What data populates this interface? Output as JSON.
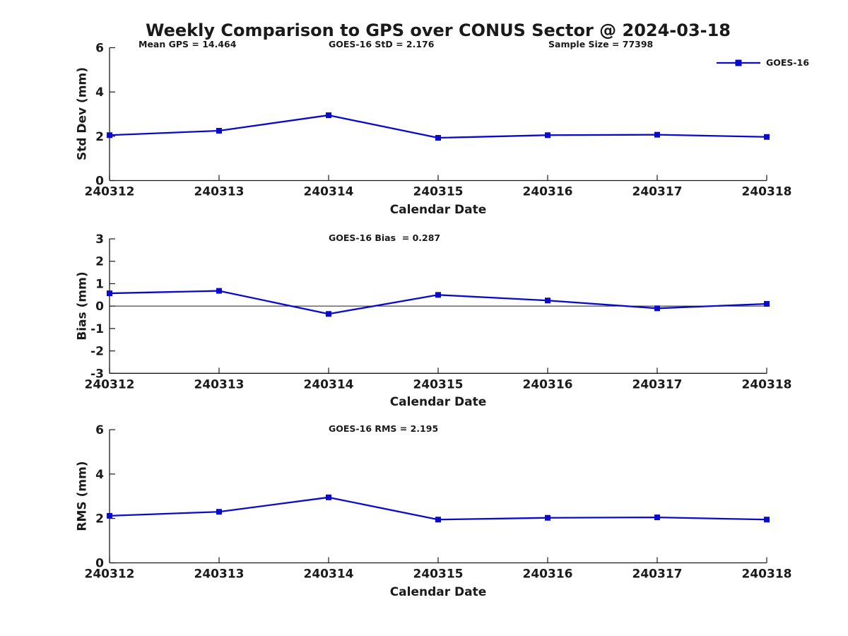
{
  "title": "Weekly Comparison to GPS over CONUS Sector @ 2024-03-18",
  "annotations": {
    "mean_gps": "Mean GPS = 14.464",
    "std": "GOES-16 StD = 2.176",
    "sample_size": "Sample Size = 77398"
  },
  "legend": {
    "label": "GOES-16",
    "color": "#0a0acd",
    "marker": "square",
    "position": "top-right"
  },
  "colors": {
    "line": "#0a0acd",
    "axis": "#1a1a1a",
    "text": "#1a1a1a",
    "background": "#ffffff"
  },
  "chart_data": [
    {
      "type": "line",
      "title": "",
      "xlabel": "Calendar Date",
      "ylabel": "Std Dev (mm)",
      "ylim": [
        0,
        6
      ],
      "yticks": [
        0,
        2,
        4,
        6
      ],
      "zero_line": false,
      "grid": false,
      "categories": [
        "240312",
        "240313",
        "240314",
        "240315",
        "240316",
        "240317",
        "240318"
      ],
      "series": [
        {
          "name": "GOES-16",
          "color": "#0a0acd",
          "marker": "square",
          "values": [
            2.05,
            2.25,
            2.95,
            1.93,
            2.05,
            2.07,
            1.97
          ]
        }
      ]
    },
    {
      "type": "line",
      "title": "GOES-16 Bias  = 0.287",
      "xlabel": "Calendar Date",
      "ylabel": "Bias (mm)",
      "ylim": [
        -3,
        3
      ],
      "yticks": [
        -3,
        -2,
        -1,
        0,
        1,
        2,
        3
      ],
      "zero_line": true,
      "grid": false,
      "categories": [
        "240312",
        "240313",
        "240314",
        "240315",
        "240316",
        "240317",
        "240318"
      ],
      "series": [
        {
          "name": "GOES-16",
          "color": "#0a0acd",
          "marker": "square",
          "values": [
            0.57,
            0.68,
            -0.35,
            0.5,
            0.25,
            -0.1,
            0.1
          ]
        }
      ]
    },
    {
      "type": "line",
      "title": "GOES-16 RMS = 2.195",
      "xlabel": "Calendar Date",
      "ylabel": "RMS (mm)",
      "ylim": [
        0,
        6
      ],
      "yticks": [
        0,
        2,
        4,
        6
      ],
      "zero_line": false,
      "grid": false,
      "categories": [
        "240312",
        "240313",
        "240314",
        "240315",
        "240316",
        "240317",
        "240318"
      ],
      "series": [
        {
          "name": "GOES-16",
          "color": "#0a0acd",
          "marker": "square",
          "values": [
            2.12,
            2.3,
            2.95,
            1.95,
            2.03,
            2.05,
            1.95
          ]
        }
      ]
    }
  ]
}
